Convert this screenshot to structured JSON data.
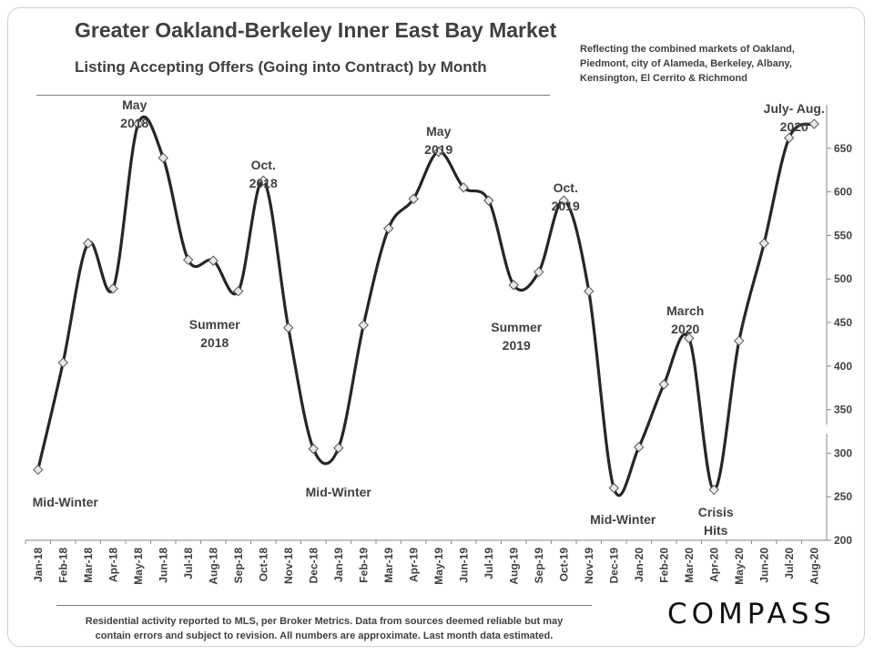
{
  "header": {
    "title": "Greater Oakland-Berkeley Inner East Bay Market",
    "subtitle": "Listing Accepting Offers (Going into Contract) by Month",
    "note_lines": [
      "Reflecting the combined markets of Oakland,",
      "Piedmont, city of Alameda, Berkeley, Albany,",
      "Kensington, El Cerrito & Richmond"
    ]
  },
  "footer": {
    "lines": [
      "Residential activity reported to MLS, per Broker Metrics. Data from sources deemed reliable but may",
      "contain errors and subject to revision. All numbers are approximate. Last month data estimated."
    ],
    "logo": "COMPASS"
  },
  "colors": {
    "line": "#262626",
    "marker_fill": "#e8e8e8",
    "marker_stroke": "#555555",
    "text": "#404040"
  },
  "chart_data": {
    "type": "line",
    "title": "Listing Accepting Offers (Going into Contract) by Month",
    "categories": [
      "Jan-18",
      "Feb-18",
      "Mar-18",
      "Apr-18",
      "May-18",
      "Jun-18",
      "Jul-18",
      "Aug-18",
      "Sep-18",
      "Oct-18",
      "Nov-18",
      "Dec-18",
      "Jan-19",
      "Feb-19",
      "Mar-19",
      "Apr-19",
      "May-19",
      "Jun-19",
      "Jul-19",
      "Aug-19",
      "Sep-19",
      "Oct-19",
      "Nov-19",
      "Dec-19",
      "Jan-20",
      "Feb-20",
      "Mar-20",
      "Apr-20",
      "May-20",
      "Jun-20",
      "Jul-20",
      "Aug-20"
    ],
    "values": [
      281,
      404,
      541,
      489,
      678,
      639,
      522,
      521,
      486,
      613,
      444,
      305,
      306,
      447,
      558,
      592,
      646,
      605,
      590,
      493,
      508,
      590,
      486,
      260,
      307,
      379,
      432,
      258,
      429,
      541,
      662,
      678
    ],
    "ylim": [
      200,
      700
    ],
    "yticks": [
      200,
      250,
      300,
      350,
      400,
      450,
      500,
      550,
      600,
      650
    ],
    "y_axis_side": "right",
    "grid": false,
    "annotations": [
      {
        "index": 0,
        "lines": [
          "Mid-Winter"
        ]
      },
      {
        "index": 4,
        "lines": [
          "May",
          "2018"
        ]
      },
      {
        "index": 8,
        "lines": [
          "Summer",
          "2018"
        ]
      },
      {
        "index": 9,
        "lines": [
          "Oct.",
          "2018"
        ]
      },
      {
        "index": 12,
        "lines": [
          "Mid-Winter"
        ]
      },
      {
        "index": 16,
        "lines": [
          "May",
          "2019"
        ]
      },
      {
        "index": 19,
        "lines": [
          "Summer",
          "2019"
        ]
      },
      {
        "index": 21,
        "lines": [
          "Oct.",
          "2019"
        ]
      },
      {
        "index": 23,
        "lines": [
          "Mid-Winter"
        ]
      },
      {
        "index": 26,
        "lines": [
          "March",
          "2020"
        ]
      },
      {
        "index": 27,
        "lines": [
          "Crisis",
          "Hits"
        ]
      },
      {
        "index": 31,
        "lines": [
          "July- Aug.",
          "2020"
        ]
      }
    ]
  }
}
